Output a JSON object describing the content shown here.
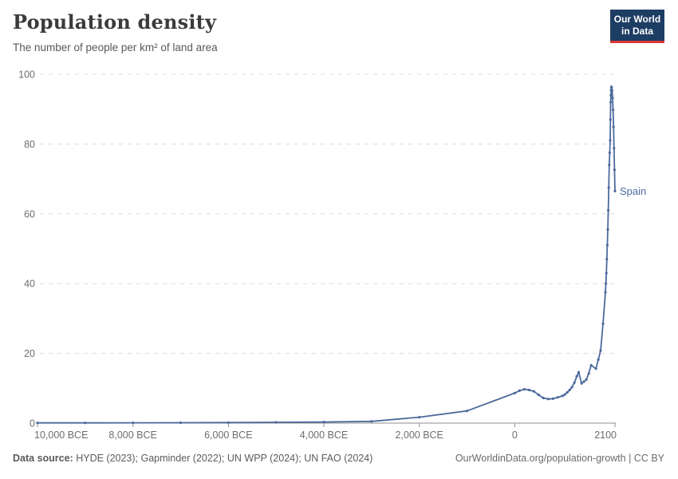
{
  "header": {
    "title": "Population density",
    "subtitle": "The number of people per km² of land area",
    "logo": {
      "line1": "Our World",
      "line2": "in Data"
    }
  },
  "chart_data": {
    "type": "line",
    "title": "Population density",
    "subtitle": "The number of people per km² of land area",
    "unit": "people per km² of land area",
    "grid": true,
    "legend_position": "end-of-line-label",
    "x_range": [
      -10000,
      2100
    ],
    "y_range": [
      0,
      100
    ],
    "y_ticks": [
      0,
      20,
      40,
      60,
      80,
      100
    ],
    "x_ticks": [
      {
        "year": -10000,
        "label": "10,000 BCE"
      },
      {
        "year": -8000,
        "label": "8,000 BCE"
      },
      {
        "year": -6000,
        "label": "6,000 BCE"
      },
      {
        "year": -4000,
        "label": "4,000 BCE"
      },
      {
        "year": -2000,
        "label": "2,000 BCE"
      },
      {
        "year": 0,
        "label": "0"
      },
      {
        "year": 2100,
        "label": "2100"
      }
    ],
    "series": [
      {
        "name": "Spain",
        "color": "#4c6a9c",
        "points": [
          [
            -10000,
            0.06
          ],
          [
            -9000,
            0.07
          ],
          [
            -8000,
            0.09
          ],
          [
            -7000,
            0.12
          ],
          [
            -6000,
            0.16
          ],
          [
            -5000,
            0.23
          ],
          [
            -4000,
            0.33
          ],
          [
            -3000,
            0.5
          ],
          [
            -2000,
            1.7
          ],
          [
            -1000,
            3.5
          ],
          [
            0,
            8.6
          ],
          [
            100,
            9.3
          ],
          [
            200,
            9.7
          ],
          [
            300,
            9.5
          ],
          [
            400,
            9.1
          ],
          [
            500,
            8.1
          ],
          [
            600,
            7.2
          ],
          [
            700,
            6.9
          ],
          [
            800,
            7.0
          ],
          [
            900,
            7.4
          ],
          [
            1000,
            7.8
          ],
          [
            1050,
            8.2
          ],
          [
            1100,
            8.8
          ],
          [
            1150,
            9.5
          ],
          [
            1200,
            10.3
          ],
          [
            1250,
            11.6
          ],
          [
            1300,
            13.4
          ],
          [
            1340,
            14.6
          ],
          [
            1400,
            11.4
          ],
          [
            1450,
            11.9
          ],
          [
            1500,
            12.5
          ],
          [
            1550,
            14.2
          ],
          [
            1600,
            16.6
          ],
          [
            1700,
            15.6
          ],
          [
            1750,
            18.2
          ],
          [
            1800,
            20.8
          ],
          [
            1850,
            28.5
          ],
          [
            1900,
            37.5
          ],
          [
            1910,
            40
          ],
          [
            1920,
            43
          ],
          [
            1930,
            47
          ],
          [
            1940,
            51
          ],
          [
            1950,
            55.5
          ],
          [
            1960,
            61
          ],
          [
            1970,
            67.5
          ],
          [
            1980,
            74
          ],
          [
            1990,
            77.5
          ],
          [
            2000,
            81
          ],
          [
            2005,
            87
          ],
          [
            2010,
            92
          ],
          [
            2015,
            94
          ],
          [
            2020,
            95.5
          ],
          [
            2024,
            96.4
          ],
          [
            2030,
            96.2
          ],
          [
            2040,
            95.3
          ],
          [
            2050,
            93.2
          ],
          [
            2060,
            89.8
          ],
          [
            2070,
            84.9
          ],
          [
            2080,
            78.8
          ],
          [
            2090,
            72.6
          ],
          [
            2100,
            66.5
          ]
        ]
      }
    ]
  },
  "footer": {
    "source_label": "Data source:",
    "source_text": " HYDE (2023); Gapminder (2022); UN WPP (2024); UN FAO (2024)",
    "link": "OurWorldinData.org/population-growth | CC BY"
  },
  "colors": {
    "line": "#4c6a9c",
    "gridline": "#dcdcdc",
    "axis": "#8f8f8f",
    "tick_label": "#6e6e6e",
    "logo_bg": "#1d3d63",
    "logo_red": "#dc3936"
  }
}
